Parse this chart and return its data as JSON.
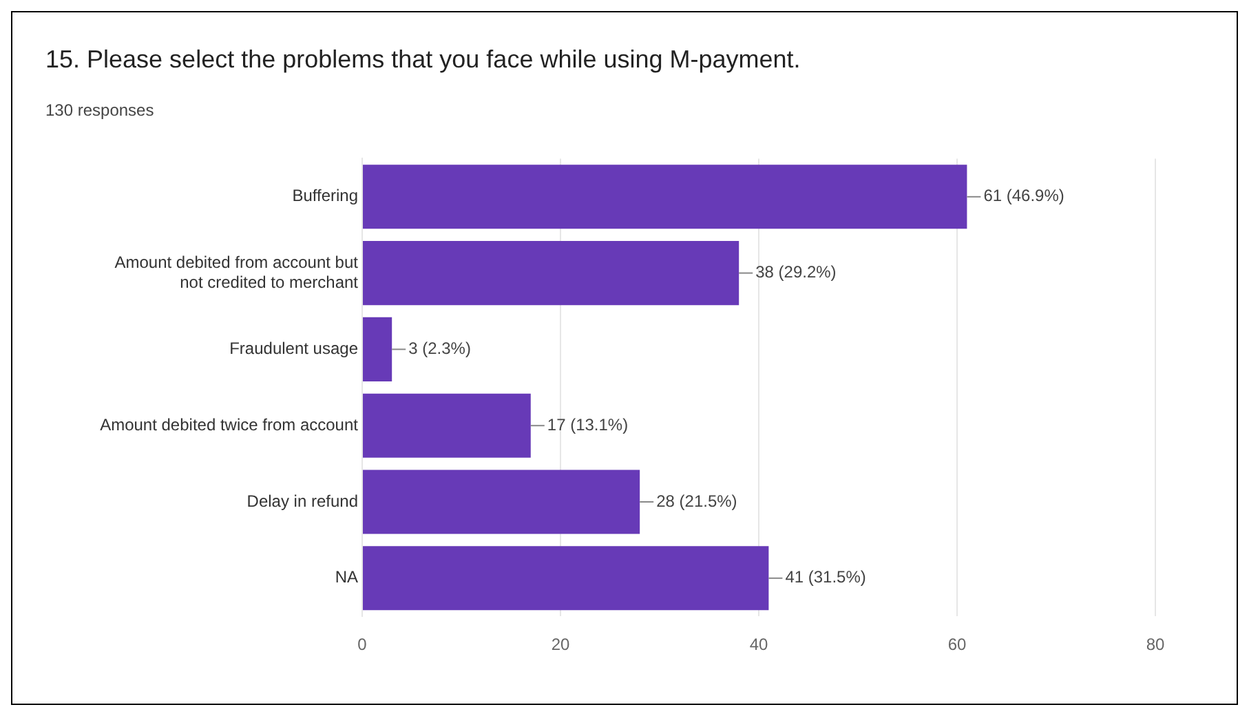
{
  "chart_data": {
    "type": "bar",
    "orientation": "horizontal",
    "title": "15.  Please select the problems that you face while using M-payment.",
    "subtitle": "130 responses",
    "categories": [
      "Buffering",
      "Amount debited from account but not credited to merchant",
      "Fraudulent usage",
      "Amount debited twice from account",
      "Delay in refund",
      "NA"
    ],
    "values": [
      61,
      38,
      3,
      17,
      28,
      41
    ],
    "value_labels": [
      "61 (46.9%)",
      "38 (29.2%)",
      "3 (2.3%)",
      "17 (13.1%)",
      "28 (21.5%)",
      "41 (31.5%)"
    ],
    "color": "#673ab7",
    "xlim": [
      0,
      80
    ],
    "xticks": [
      0,
      20,
      40,
      60,
      80
    ],
    "grid": "x",
    "legend": false
  }
}
